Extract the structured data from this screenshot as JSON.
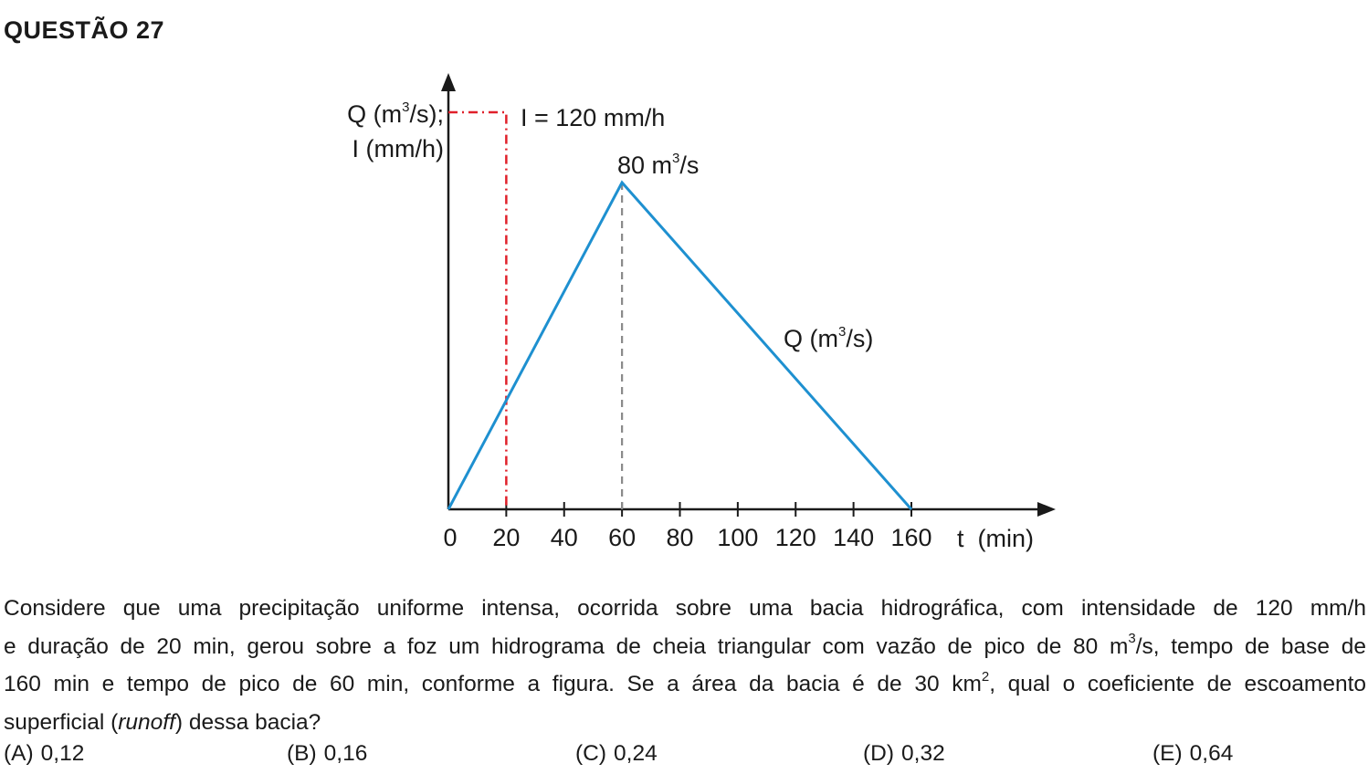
{
  "question": {
    "title": "QUESTÃO 27"
  },
  "chart_data": {
    "type": "line",
    "ylabel_line1_pre": "Q (m",
    "ylabel_line1_sup": "3",
    "ylabel_line1_post": "/s);",
    "ylabel_line2": "I (mm/h)",
    "xlabel": "t  (min)",
    "x_ticks": [
      "0",
      "20",
      "40",
      "60",
      "80",
      "100",
      "120",
      "140",
      "160"
    ],
    "x_tick_values": [
      0,
      20,
      40,
      60,
      80,
      100,
      120,
      140,
      160
    ],
    "xlim": [
      0,
      210
    ],
    "rainfall": {
      "label": "I = 120 mm/h",
      "duration_min": 20,
      "color": "#e0202a"
    },
    "hydrograph": {
      "name_pre": "Q (m",
      "name_sup": "3",
      "name_post": "/s)",
      "x": [
        0,
        60,
        160
      ],
      "y": [
        0,
        80,
        0
      ],
      "color": "#1e90d0"
    },
    "peak": {
      "label_pre": "80 m",
      "label_sup": "3",
      "label_post": "/s",
      "time_min": 60,
      "value": 80,
      "color": "#8a8a8a"
    }
  },
  "text": {
    "line1": "Considere que uma precipitação uniforme intensa, ocorrida sobre uma bacia hidrográfica, com intensidade de 120 mm/h",
    "line2_pre": "e duração de 20 min, gerou sobre a foz um hidrograma de cheia triangular com vazão de pico de 80 m",
    "line2_sup": "3",
    "line2_post": "/s,  tempo de base de",
    "line3_pre": "160 min e tempo de pico de 60 min, conforme a figura. Se a área da bacia é de 30 km",
    "line3_sup": "2",
    "line3_post": ", qual o coeficiente de escoamento",
    "line4_pre": "superficial (",
    "line4_italic": "runoff",
    "line4_post": ") dessa bacia?"
  },
  "options": [
    {
      "letter": "(A)",
      "value": "0,12"
    },
    {
      "letter": "(B)",
      "value": "0,16"
    },
    {
      "letter": "(C)",
      "value": "0,24"
    },
    {
      "letter": "(D)",
      "value": "0,32"
    },
    {
      "letter": "(E)",
      "value": "0,64"
    }
  ]
}
